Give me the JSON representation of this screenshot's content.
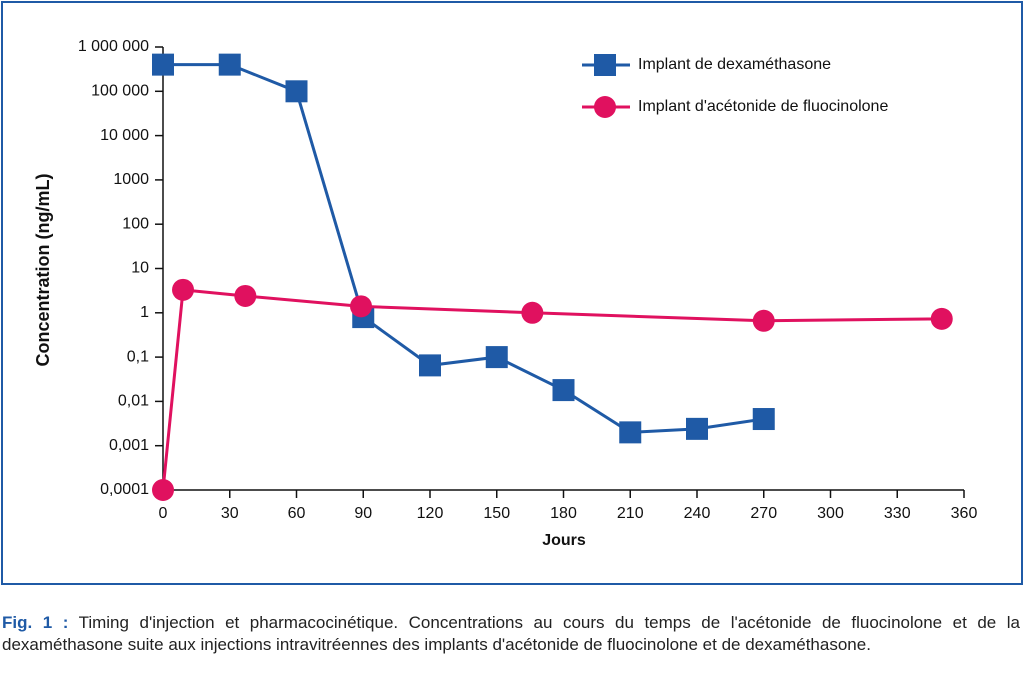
{
  "chart_data": {
    "type": "line",
    "x_label": "Jours",
    "y_label": "Concentration (ng/mL)",
    "yscale": "log",
    "xlim": [
      0,
      360
    ],
    "xticks": [
      0,
      30,
      60,
      90,
      120,
      150,
      180,
      210,
      240,
      270,
      300,
      330,
      360
    ],
    "ylim": [
      0.0001,
      1000000
    ],
    "yticks": [
      {
        "value": 1000000,
        "label": "1 000 000"
      },
      {
        "value": 100000,
        "label": "100 000"
      },
      {
        "value": 10000,
        "label": "10 000"
      },
      1000,
      100,
      10,
      1,
      {
        "value": 0.1,
        "label": "0,1"
      },
      {
        "value": 0.01,
        "label": "0,01"
      },
      {
        "value": 0.001,
        "label": "0,001"
      },
      {
        "value": 0.0001,
        "label": "0,0001"
      }
    ],
    "legend_position": "upper right",
    "series": [
      {
        "name": "Implant de dexaméthasone",
        "color": "#1f5aa6",
        "marker": "square",
        "x": [
          0,
          30,
          60,
          90,
          120,
          150,
          180,
          210,
          240,
          270
        ],
        "values": [
          400000,
          400000,
          100000,
          0.8,
          0.065,
          0.1,
          0.018,
          0.002,
          0.0024,
          0.004
        ]
      },
      {
        "name": "Implant d'acétonide de fluocinolone",
        "color": "#e0115f",
        "marker": "circle",
        "x": [
          0,
          9,
          37,
          89,
          166,
          270,
          350
        ],
        "values": [
          0.0001,
          3.3,
          2.4,
          1.4,
          1,
          0.66,
          0.73
        ]
      }
    ]
  },
  "caption": {
    "label": "Fig. 1 :",
    "text": "Timing d'injection et pharmacocinétique. Concentrations au cours du temps de l'acétonide de fluocinolone et de la dexaméthasone suite aux injections intravitréennes des implants d'acétonide de fluocinolone et de dexaméthasone."
  }
}
